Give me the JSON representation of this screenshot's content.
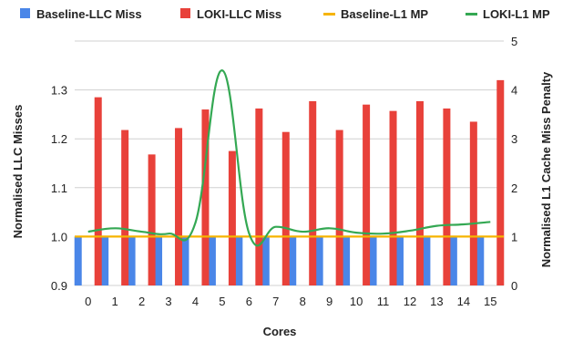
{
  "chart_data": {
    "type": "bar+line",
    "categories": [
      "0",
      "1",
      "2",
      "3",
      "4",
      "5",
      "6",
      "7",
      "8",
      "9",
      "10",
      "11",
      "12",
      "13",
      "14",
      "15"
    ],
    "xlabel": "Cores",
    "ylabel_left": "Normalised LLC Misses",
    "ylabel_right": "Normalised L1 Cache Miss Penalty",
    "ylim_left": [
      0.9,
      1.4
    ],
    "yticks_left": [
      "0.9",
      "1.0",
      "1.1",
      "1.2",
      "1.3"
    ],
    "ylim_right": [
      0,
      5
    ],
    "yticks_right": [
      "0",
      "1",
      "2",
      "3",
      "4",
      "5"
    ],
    "grid": true,
    "legend_position": "top",
    "series": [
      {
        "name": "Baseline-LLC Miss",
        "type": "bar",
        "axis": "left",
        "color": "#4a86e8",
        "values": [
          1.0,
          1.0,
          1.0,
          1.0,
          1.0,
          1.0,
          1.0,
          1.0,
          1.0,
          1.0,
          1.0,
          1.0,
          1.0,
          1.0,
          1.0,
          1.0
        ]
      },
      {
        "name": "LOKI-LLC Miss",
        "type": "bar",
        "axis": "left",
        "color": "#e8413a",
        "values": [
          1.285,
          1.218,
          1.168,
          1.222,
          1.26,
          1.175,
          1.262,
          1.214,
          1.277,
          1.218,
          1.27,
          1.257,
          1.277,
          1.262,
          1.235,
          1.32
        ]
      },
      {
        "name": "Baseline-L1 MP",
        "type": "line",
        "axis": "right",
        "color": "#f6b400",
        "values": [
          1,
          1,
          1,
          1,
          1,
          1,
          1,
          1,
          1,
          1,
          1,
          1,
          1,
          1,
          1,
          1
        ]
      },
      {
        "name": "LOKI-L1 MP",
        "type": "line",
        "axis": "right",
        "color": "#34a853",
        "values": [
          1.1,
          1.17,
          1.1,
          1.06,
          1.28,
          4.4,
          1.07,
          1.2,
          1.1,
          1.17,
          1.08,
          1.06,
          1.12,
          1.22,
          1.25,
          1.3
        ]
      }
    ]
  }
}
